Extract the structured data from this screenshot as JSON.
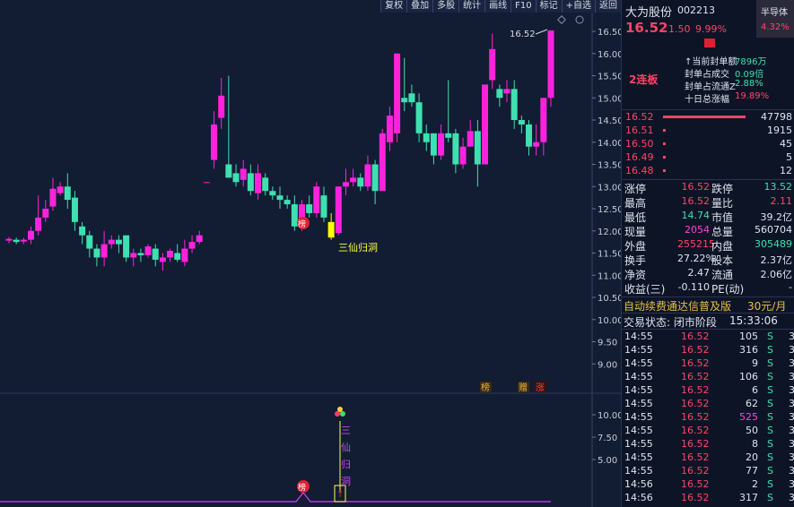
{
  "toolbar": [
    "复权",
    "叠加",
    "多股",
    "统计",
    "画线",
    "F10",
    "标记",
    "+自选",
    "返回"
  ],
  "axis": {
    "main_ticks": [
      "16.50",
      "16.00",
      "15.50",
      "15.00",
      "14.50",
      "14.00",
      "13.50",
      "13.00",
      "12.50",
      "12.00",
      "11.50",
      "11.00",
      "10.50",
      "10.00",
      "9.50",
      "9.00"
    ],
    "sub_ticks": [
      "10.00",
      "7.50",
      "5.00"
    ]
  },
  "chart": {
    "high_label": "16.52",
    "signal_label": "三仙归洞",
    "sub_signal_chars": [
      "三",
      "仙",
      "归",
      "洞"
    ],
    "badge_bang": "榜",
    "badge_zeng": "赠",
    "badge_zhang": "涨",
    "sub_badge_bang": "榜",
    "sub_arrow": "↑",
    "chart_data": {
      "type": "candlestick",
      "up_color": "#ff22dd",
      "down_color": "#3fe0b0",
      "signal_color": "#ffff00",
      "candles": [
        [
          11.78,
          11.82,
          11.72,
          11.86
        ],
        [
          11.8,
          11.75,
          11.7,
          11.85
        ],
        [
          11.76,
          11.8,
          11.7,
          11.84
        ],
        [
          11.8,
          12.0,
          11.7,
          12.1
        ],
        [
          12.0,
          12.3,
          11.9,
          12.8
        ],
        [
          12.3,
          12.5,
          12.2,
          12.7
        ],
        [
          12.55,
          12.95,
          12.45,
          13.2
        ],
        [
          12.85,
          13.0,
          12.8,
          13.1
        ],
        [
          13.0,
          12.7,
          12.5,
          13.3
        ],
        [
          12.75,
          12.2,
          12.0,
          12.9
        ],
        [
          12.1,
          11.9,
          11.7,
          12.2
        ],
        [
          11.9,
          11.6,
          11.4,
          12.0
        ],
        [
          11.6,
          11.4,
          11.2,
          11.7
        ],
        [
          11.4,
          11.7,
          11.2,
          12.0
        ],
        [
          11.7,
          11.8,
          11.6,
          11.9
        ],
        [
          11.8,
          11.7,
          11.5,
          11.9
        ],
        [
          11.9,
          11.4,
          11.3,
          11.9
        ],
        [
          11.4,
          11.5,
          11.2,
          11.6
        ],
        [
          11.5,
          11.45,
          11.3,
          11.6
        ],
        [
          11.45,
          11.65,
          11.4,
          11.7
        ],
        [
          11.6,
          11.35,
          11.2,
          11.7
        ],
        [
          11.3,
          11.4,
          11.1,
          11.5
        ],
        [
          11.4,
          11.55,
          11.3,
          11.6
        ],
        [
          11.5,
          11.35,
          11.3,
          11.7
        ],
        [
          11.3,
          11.6,
          11.2,
          11.8
        ],
        [
          11.6,
          11.75,
          11.5,
          11.9
        ],
        [
          11.75,
          11.9,
          11.7,
          12.0
        ],
        [
          13.1,
          13.1,
          13.1,
          13.1
        ],
        [
          13.6,
          14.4,
          13.4,
          14.7
        ],
        [
          14.55,
          15.05,
          14.3,
          15.45
        ],
        [
          13.5,
          13.2,
          13.2,
          15.5
        ],
        [
          13.3,
          13.1,
          13.0,
          13.5
        ],
        [
          13.15,
          13.4,
          13.0,
          13.6
        ],
        [
          13.3,
          12.9,
          12.8,
          13.5
        ],
        [
          12.85,
          13.3,
          12.7,
          13.5
        ],
        [
          13.2,
          12.9,
          12.8,
          13.3
        ],
        [
          12.9,
          12.8,
          12.7,
          13.0
        ],
        [
          12.8,
          12.7,
          12.5,
          13.0
        ],
        [
          12.7,
          12.6,
          12.5,
          12.8
        ],
        [
          12.6,
          12.1,
          12.0,
          12.8
        ],
        [
          12.1,
          12.6,
          12.0,
          12.7
        ],
        [
          12.6,
          12.4,
          12.3,
          12.8
        ],
        [
          12.4,
          13.0,
          12.3,
          13.1
        ],
        [
          12.8,
          12.3,
          12.2,
          13.0
        ],
        [
          12.2,
          11.85,
          11.8,
          12.4
        ],
        [
          11.95,
          13.0,
          11.9,
          13.0
        ],
        [
          13.0,
          13.1,
          12.8,
          13.4
        ],
        [
          13.1,
          13.2,
          13.0,
          13.4
        ],
        [
          13.2,
          13.0,
          12.9,
          13.3
        ],
        [
          13.0,
          13.5,
          12.9,
          13.7
        ],
        [
          13.5,
          12.9,
          12.6,
          13.6
        ],
        [
          12.9,
          14.2,
          12.9,
          14.3
        ],
        [
          14.0,
          14.6,
          13.8,
          14.8
        ],
        [
          14.2,
          16.0,
          14.0,
          16.0
        ],
        [
          15.0,
          14.9,
          14.7,
          15.9
        ],
        [
          15.1,
          14.9,
          14.8,
          15.3
        ],
        [
          14.9,
          14.2,
          14.0,
          15.1
        ],
        [
          14.2,
          14.0,
          13.8,
          14.4
        ],
        [
          14.2,
          13.7,
          13.5,
          14.2
        ],
        [
          13.7,
          14.2,
          13.6,
          14.4
        ],
        [
          14.2,
          14.1,
          14.0,
          15.4
        ],
        [
          14.2,
          13.5,
          13.3,
          14.3
        ],
        [
          13.5,
          13.9,
          13.4,
          14.1
        ],
        [
          13.9,
          14.25,
          13.9,
          14.5
        ],
        [
          14.25,
          13.5,
          13.0,
          14.5
        ],
        [
          13.5,
          15.3,
          13.5,
          15.3
        ],
        [
          15.4,
          16.1,
          15.2,
          16.45
        ],
        [
          15.2,
          15.0,
          14.8,
          15.3
        ],
        [
          15.1,
          15.2,
          14.9,
          15.4
        ],
        [
          15.2,
          14.5,
          14.3,
          15.4
        ],
        [
          14.5,
          14.4,
          14.2,
          14.6
        ],
        [
          14.4,
          13.9,
          13.7,
          14.5
        ],
        [
          13.9,
          14.0,
          13.7,
          14.4
        ],
        [
          14.0,
          15.0,
          13.7,
          15.0
        ],
        [
          15.0,
          16.52,
          14.8,
          16.52
        ]
      ]
    }
  },
  "panel": {
    "stock_name": "大为股份",
    "stock_code": "002213",
    "sector": "半导体",
    "sector_pct": "4.32%",
    "price": "16.52",
    "change": "1.50",
    "change_pct": "9.99%",
    "board": "2连板",
    "seal_info": [
      {
        "label": "↑当前封单额",
        "value": "7896万"
      },
      {
        "label": "封单占成交",
        "value": "0.09倍"
      },
      {
        "label": "封单占流通Z",
        "value": "2.88%"
      },
      {
        "label": "十日总涨幅",
        "value": "19.89%"
      }
    ],
    "bids": [
      {
        "price": "16.52",
        "vol": "47798"
      },
      {
        "price": "16.51",
        "vol": "1915"
      },
      {
        "price": "16.50",
        "vol": "45"
      },
      {
        "price": "16.49",
        "vol": "5"
      },
      {
        "price": "16.48",
        "vol": "12"
      }
    ],
    "stats": [
      {
        "l1": "涨停",
        "v1": "16.52",
        "l2": "跌停",
        "v2": "13.52"
      },
      {
        "l1": "最高",
        "v1": "16.52",
        "l2": "量比",
        "v2": "2.11"
      },
      {
        "l1": "最低",
        "v1": "14.74",
        "l2": "市值",
        "v2": "39.2亿"
      },
      {
        "l1": "现量",
        "v1": "2054",
        "l2": "总量",
        "v2": "560704"
      },
      {
        "l1": "外盘",
        "v1": "255215",
        "l2": "内盘",
        "v2": "305489"
      },
      {
        "l1": "换手",
        "v1": "27.22%",
        "l2": "股本",
        "v2": "2.37亿"
      },
      {
        "l1": "净资",
        "v1": "2.47",
        "l2": "流通",
        "v2": "2.06亿"
      },
      {
        "l1": "收益(三)",
        "v1": "-0.110",
        "l2": "PE(动)",
        "v2": "-"
      }
    ],
    "ad_text": "自动续费通达信普及版",
    "ad_price": "30元/月",
    "trade_status_label": "交易状态: 闭市阶段",
    "trade_time": "15:33:06",
    "ticks": [
      {
        "t": "14:55",
        "p": "16.52",
        "v": "105",
        "s": "S",
        "n": "3"
      },
      {
        "t": "14:55",
        "p": "16.52",
        "v": "316",
        "s": "S",
        "n": "3"
      },
      {
        "t": "14:55",
        "p": "16.52",
        "v": "9",
        "s": "S",
        "n": "3"
      },
      {
        "t": "14:55",
        "p": "16.52",
        "v": "106",
        "s": "S",
        "n": "3"
      },
      {
        "t": "14:55",
        "p": "16.52",
        "v": "6",
        "s": "S",
        "n": "3"
      },
      {
        "t": "14:55",
        "p": "16.52",
        "v": "62",
        "s": "S",
        "n": "3"
      },
      {
        "t": "14:55",
        "p": "16.52",
        "v": "525",
        "s": "S",
        "n": "3"
      },
      {
        "t": "14:55",
        "p": "16.52",
        "v": "50",
        "s": "S",
        "n": "3"
      },
      {
        "t": "14:55",
        "p": "16.52",
        "v": "8",
        "s": "S",
        "n": "3"
      },
      {
        "t": "14:55",
        "p": "16.52",
        "v": "20",
        "s": "S",
        "n": "3"
      },
      {
        "t": "14:55",
        "p": "16.52",
        "v": "77",
        "s": "S",
        "n": "3"
      },
      {
        "t": "14:56",
        "p": "16.52",
        "v": "2",
        "s": "S",
        "n": "3"
      },
      {
        "t": "14:56",
        "p": "16.52",
        "v": "317",
        "s": "S",
        "n": "3"
      }
    ]
  }
}
